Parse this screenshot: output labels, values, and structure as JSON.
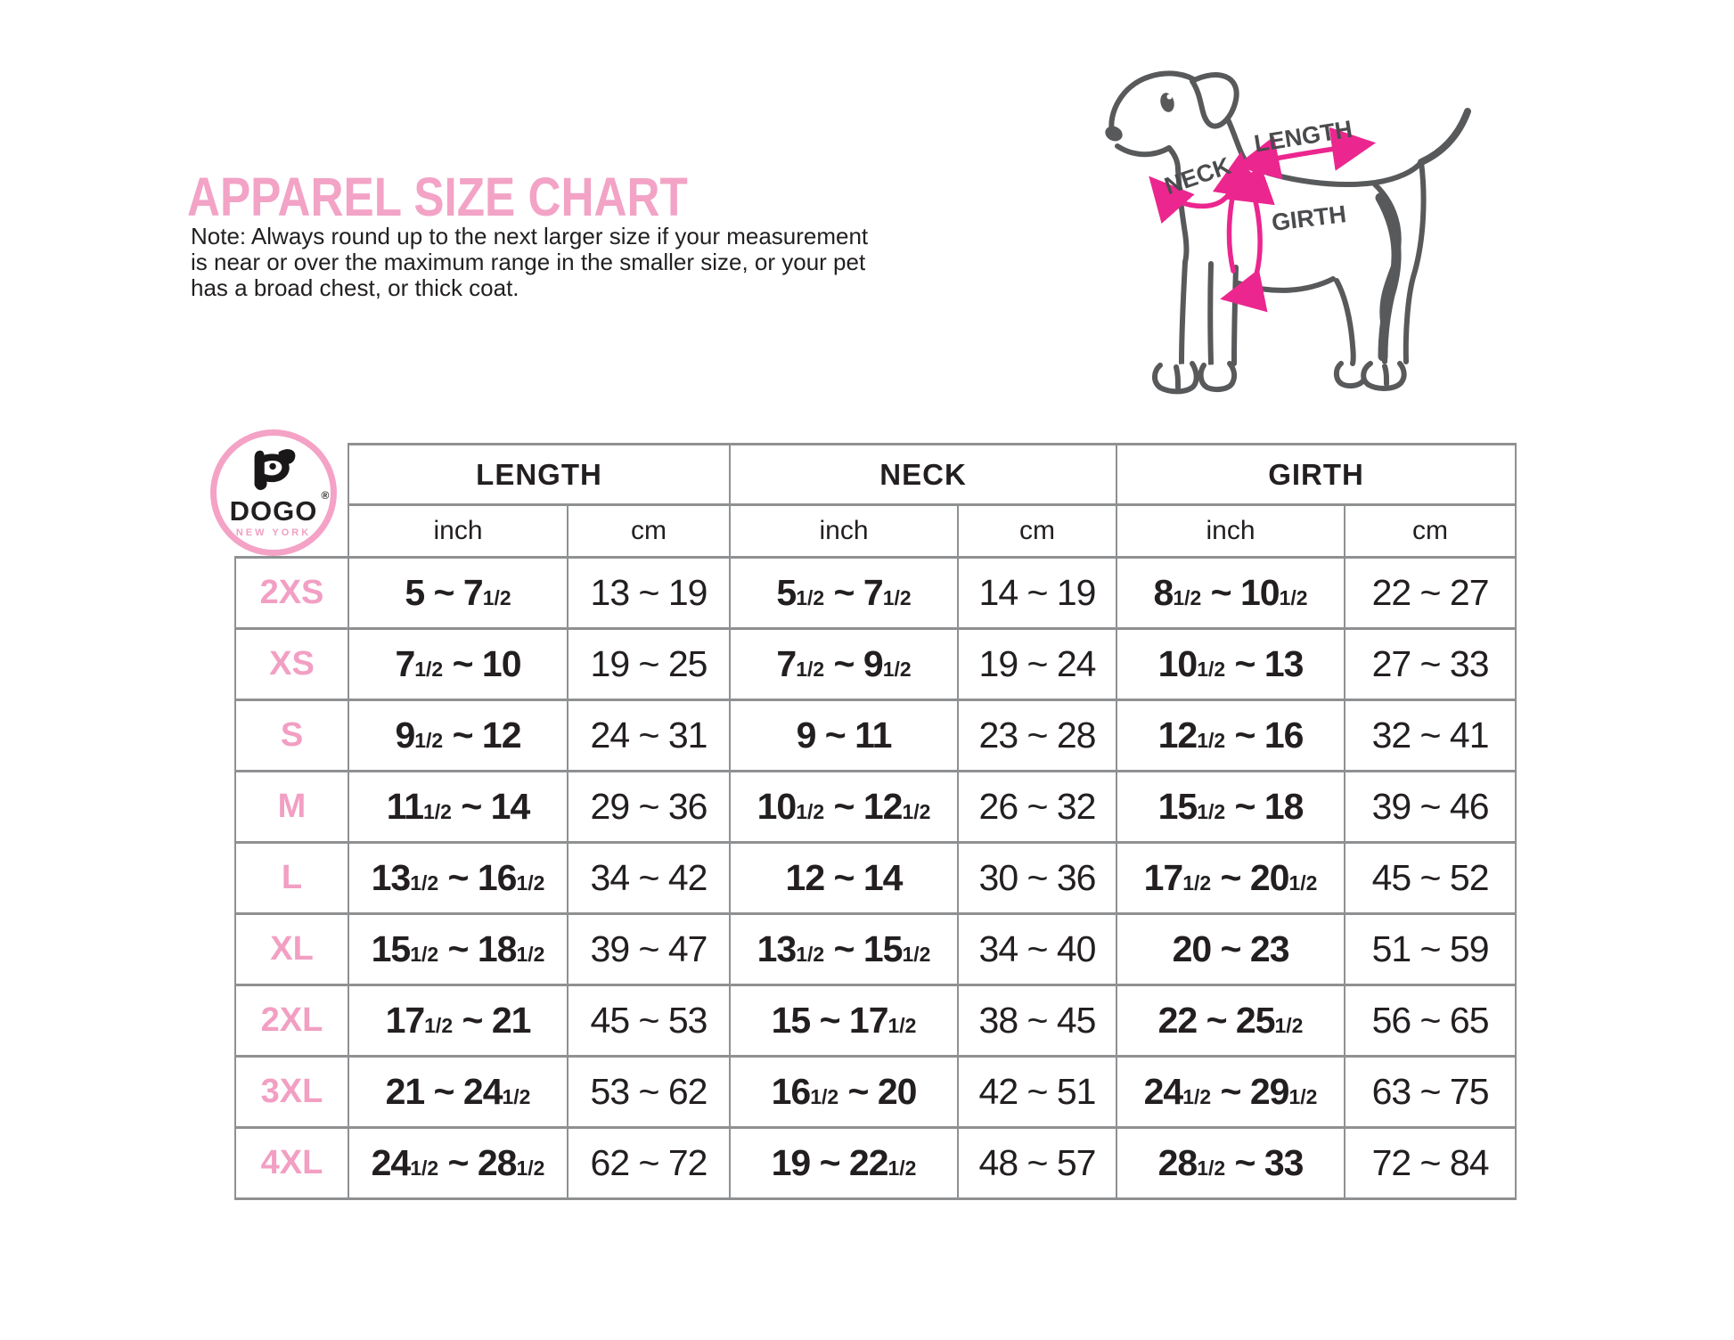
{
  "page": {
    "title": "APPAREL SIZE CHART",
    "note_lines": [
      "Note: Always round up to the next larger size if your measurement",
      "is near or over the maximum range in the smaller size, or your pet",
      "has a broad chest, or thick coat."
    ]
  },
  "diagram": {
    "labels": {
      "neck": "NECK",
      "length": "LENGTH",
      "girth": "GIRTH"
    }
  },
  "logo": {
    "brand": "DOGO",
    "registered": "®",
    "city": "NEW YORK"
  },
  "colors": {
    "pink": "#f2a3c6",
    "magenta": "#ec268f",
    "dog_gray": "#58595b",
    "text": "#231f20",
    "border_gray": "#8f9092"
  },
  "table": {
    "groups": [
      {
        "label": "LENGTH"
      },
      {
        "label": "NECK"
      },
      {
        "label": "GIRTH"
      }
    ],
    "units": [
      "inch",
      "cm",
      "inch",
      "cm",
      "inch",
      "cm"
    ],
    "rows": [
      {
        "size": "2XS",
        "length_in": "5 ~ 7½",
        "length_cm": "13 ~ 19",
        "neck_in": "5½ ~ 7½",
        "neck_cm": "14 ~ 19",
        "girth_in": "8½ ~ 10½",
        "girth_cm": "22 ~ 27"
      },
      {
        "size": "XS",
        "length_in": "7½ ~ 10",
        "length_cm": "19 ~ 25",
        "neck_in": "7½ ~ 9½",
        "neck_cm": "19 ~ 24",
        "girth_in": "10½ ~ 13",
        "girth_cm": "27 ~ 33"
      },
      {
        "size": "S",
        "length_in": "9½ ~ 12",
        "length_cm": "24 ~ 31",
        "neck_in": "9 ~ 11",
        "neck_cm": "23 ~ 28",
        "girth_in": "12½ ~ 16",
        "girth_cm": "32 ~ 41"
      },
      {
        "size": "M",
        "length_in": "11½ ~ 14",
        "length_cm": "29 ~ 36",
        "neck_in": "10½ ~ 12½",
        "neck_cm": "26 ~ 32",
        "girth_in": "15½ ~ 18",
        "girth_cm": "39 ~ 46"
      },
      {
        "size": "L",
        "length_in": "13½ ~ 16½",
        "length_cm": "34 ~ 42",
        "neck_in": "12 ~ 14",
        "neck_cm": "30 ~ 36",
        "girth_in": "17½ ~ 20½",
        "girth_cm": "45 ~ 52"
      },
      {
        "size": "XL",
        "length_in": "15½ ~ 18½",
        "length_cm": "39 ~ 47",
        "neck_in": "13½ ~ 15½",
        "neck_cm": "34 ~ 40",
        "girth_in": "20 ~ 23",
        "girth_cm": "51 ~ 59"
      },
      {
        "size": "2XL",
        "length_in": "17½ ~ 21",
        "length_cm": "45 ~ 53",
        "neck_in": "15 ~ 17½",
        "neck_cm": "38 ~ 45",
        "girth_in": "22 ~ 25½",
        "girth_cm": "56 ~ 65"
      },
      {
        "size": "3XL",
        "length_in": "21 ~ 24½",
        "length_cm": "53 ~ 62",
        "neck_in": "16½ ~ 20",
        "neck_cm": "42 ~ 51",
        "girth_in": "24½ ~ 29½",
        "girth_cm": "63 ~ 75"
      },
      {
        "size": "4XL",
        "length_in": "24½ ~ 28½",
        "length_cm": "62 ~ 72",
        "neck_in": "19 ~ 22½",
        "neck_cm": "48 ~ 57",
        "girth_in": "28½ ~ 33",
        "girth_cm": "72 ~ 84"
      }
    ]
  }
}
